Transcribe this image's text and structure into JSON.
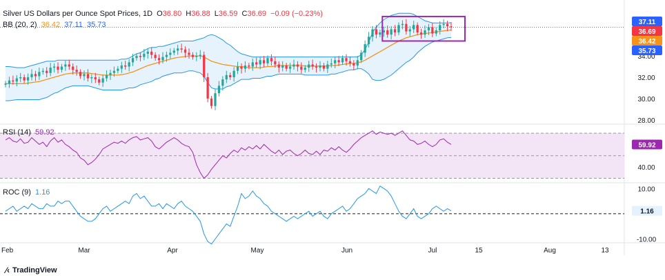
{
  "header": {
    "title": "Silver US Dollars per Ounce Spot Prices, 1D",
    "o_label": "O",
    "o_value": "36.80",
    "h_label": "H",
    "h_value": "36.88",
    "l_label": "L",
    "l_value": "36.59",
    "c_label": "C",
    "c_value": "36.69",
    "change": "−0.09 (−0.23%)",
    "bb_label": "BB (20, 2)",
    "bb_mid": "36.42",
    "bb_upper": "37.11",
    "bb_lower": "35.73"
  },
  "rsi": {
    "label": "RSI (14)",
    "value": "59.92"
  },
  "roc": {
    "label": "ROC (9)",
    "value": "1.16"
  },
  "brand": {
    "name": "TradingView"
  },
  "colors": {
    "up": "#26a69a",
    "down": "#f23645",
    "bb_mid": "#f7931a",
    "bb_band": "#2196f3",
    "bb_fill": "#e3f2fd",
    "rsi": "#9c27b0",
    "rsi_band": "#f3e5f5",
    "roc": "#2196f3",
    "highlight": "#9c27b0",
    "badge_last": "#f23645",
    "badge_upper": "#2962ff",
    "badge_mid": "#f7931a",
    "badge_lower": "#2962ff"
  },
  "chart_data": [
    {
      "type": "candlestick",
      "title": "Silver US Dollars per Ounce Spot Prices, 1D",
      "x_tick_labels": [
        "Feb",
        "Mar",
        "Apr",
        "May",
        "Jun",
        "Jul",
        "15",
        "Aug",
        "13"
      ],
      "y_tick_labels": [
        "34.00",
        "32.00",
        "30.00",
        "28.00"
      ],
      "ylim": [
        27.6,
        38.6
      ],
      "price_badges": [
        "37.11",
        "36.69",
        "36.42",
        "35.73"
      ],
      "close": [
        31.4,
        31.7,
        31.6,
        31.9,
        32.0,
        31.7,
        32.0,
        32.3,
        32.1,
        32.5,
        32.6,
        32.4,
        32.9,
        33.0,
        32.7,
        33.0,
        33.2,
        33.0,
        32.7,
        32.5,
        32.1,
        32.3,
        31.9,
        32.0,
        31.8,
        31.5,
        31.9,
        32.2,
        32.4,
        32.6,
        32.8,
        33.1,
        33.0,
        33.4,
        33.8,
        34.0,
        33.9,
        34.2,
        34.4,
        34.1,
        33.8,
        33.6,
        33.9,
        34.1,
        34.3,
        34.5,
        34.7,
        34.6,
        34.3,
        34.1,
        33.9,
        34.0,
        34.1,
        32.0,
        30.0,
        29.3,
        30.5,
        31.2,
        31.8,
        32.2,
        32.0,
        32.6,
        33.0,
        32.8,
        33.1,
        33.0,
        33.4,
        33.2,
        33.6,
        33.3,
        33.8,
        33.5,
        33.2,
        32.9,
        33.1,
        32.8,
        33.0,
        33.2,
        33.0,
        32.7,
        32.9,
        33.2,
        33.0,
        32.9,
        33.1,
        32.8,
        33.2,
        33.3,
        33.6,
        33.4,
        33.8,
        33.5,
        33.3,
        33.1,
        33.6,
        34.3,
        35.1,
        35.8,
        36.5,
        36.0,
        36.2,
        36.4,
        36.0,
        36.5,
        36.2,
        36.9,
        37.0,
        36.3,
        36.5,
        36.9,
        36.2,
        36.0,
        36.4,
        36.7,
        36.1,
        36.4,
        36.9,
        37.0,
        36.78,
        36.69
      ],
      "bb_upper": [
        33.0,
        33.0,
        32.95,
        32.9,
        32.9,
        32.9,
        33.0,
        33.1,
        33.2,
        33.3,
        33.4,
        33.5,
        33.5,
        33.5,
        33.6,
        33.6,
        33.6,
        33.6,
        33.6,
        33.6,
        33.6,
        33.6,
        33.6,
        33.6,
        33.6,
        33.6,
        33.6,
        33.6,
        33.6,
        33.6,
        33.6,
        33.7,
        33.7,
        33.8,
        34.0,
        34.2,
        34.3,
        34.5,
        34.7,
        34.8,
        34.8,
        34.9,
        34.9,
        35.0,
        35.1,
        35.2,
        35.3,
        35.4,
        35.4,
        35.4,
        35.4,
        35.5,
        35.6,
        35.7,
        35.9,
        36.0,
        35.9,
        35.7,
        35.5,
        35.2,
        35.0,
        34.7,
        34.4,
        34.2,
        34.1,
        34.0,
        33.9,
        33.9,
        33.9,
        33.9,
        33.9,
        33.9,
        33.9,
        33.9,
        33.9,
        33.9,
        33.9,
        33.9,
        33.9,
        33.9,
        33.9,
        33.9,
        33.9,
        33.9,
        33.9,
        33.9,
        33.9,
        33.9,
        33.9,
        33.9,
        33.9,
        33.9,
        33.9,
        33.9,
        33.9,
        34.1,
        34.6,
        35.3,
        36.2,
        36.7,
        37.1,
        37.4,
        37.6,
        37.8,
        37.9,
        38.0,
        38.0,
        38.0,
        38.0,
        37.9,
        37.7,
        37.5,
        37.3,
        37.2,
        37.1,
        37.1,
        37.1,
        37.1,
        37.1,
        37.11
      ],
      "bb_mid": [
        31.4,
        31.4,
        31.4,
        31.4,
        31.4,
        31.4,
        31.45,
        31.5,
        31.55,
        31.6,
        31.7,
        31.8,
        31.9,
        32.0,
        32.1,
        32.2,
        32.3,
        32.35,
        32.4,
        32.4,
        32.4,
        32.4,
        32.4,
        32.35,
        32.3,
        32.25,
        32.2,
        32.2,
        32.2,
        32.2,
        32.2,
        32.25,
        32.3,
        32.4,
        32.5,
        32.65,
        32.8,
        32.95,
        33.1,
        33.2,
        33.3,
        33.4,
        33.5,
        33.6,
        33.7,
        33.8,
        33.85,
        33.9,
        33.95,
        34.0,
        34.0,
        34.0,
        34.0,
        33.9,
        33.7,
        33.5,
        33.4,
        33.3,
        33.2,
        33.15,
        33.1,
        33.05,
        33.0,
        33.0,
        32.95,
        32.9,
        32.9,
        32.9,
        32.9,
        32.95,
        33.0,
        33.0,
        33.05,
        33.1,
        33.1,
        33.1,
        33.1,
        33.1,
        33.1,
        33.1,
        33.05,
        33.05,
        33.05,
        33.05,
        33.05,
        33.05,
        33.05,
        33.1,
        33.1,
        33.15,
        33.2,
        33.25,
        33.3,
        33.3,
        33.35,
        33.45,
        33.6,
        33.8,
        34.0,
        34.2,
        34.4,
        34.6,
        34.8,
        35.0,
        35.2,
        35.4,
        35.55,
        35.7,
        35.8,
        35.9,
        36.0,
        36.05,
        36.1,
        36.15,
        36.2,
        36.25,
        36.3,
        36.35,
        36.4,
        36.42
      ],
      "bb_lower": [
        29.8,
        29.8,
        29.85,
        29.9,
        29.9,
        29.9,
        29.9,
        29.9,
        29.9,
        29.9,
        30.0,
        30.1,
        30.3,
        30.5,
        30.6,
        30.8,
        31.0,
        31.1,
        31.2,
        31.2,
        31.2,
        31.2,
        31.2,
        31.1,
        31.0,
        30.9,
        30.8,
        30.8,
        30.8,
        30.8,
        30.8,
        30.8,
        30.9,
        31.0,
        31.0,
        31.1,
        31.3,
        31.4,
        31.5,
        31.6,
        31.8,
        31.9,
        32.1,
        32.2,
        32.3,
        32.4,
        32.4,
        32.4,
        32.5,
        32.6,
        32.6,
        32.5,
        32.4,
        32.1,
        31.5,
        31.0,
        30.9,
        30.9,
        30.9,
        31.1,
        31.2,
        31.4,
        31.6,
        31.8,
        31.8,
        31.8,
        31.9,
        31.9,
        31.9,
        32.0,
        32.1,
        32.1,
        32.2,
        32.3,
        32.3,
        32.3,
        32.3,
        32.3,
        32.3,
        32.3,
        32.2,
        32.2,
        32.2,
        32.2,
        32.2,
        32.2,
        32.2,
        32.3,
        32.3,
        32.4,
        32.5,
        32.6,
        32.7,
        32.7,
        32.8,
        32.8,
        32.6,
        32.3,
        31.8,
        31.7,
        31.7,
        31.8,
        32.0,
        32.2,
        32.5,
        32.8,
        33.1,
        33.4,
        33.6,
        33.9,
        34.3,
        34.6,
        34.9,
        35.1,
        35.3,
        35.4,
        35.5,
        35.6,
        35.7,
        35.73
      ]
    },
    {
      "type": "line",
      "title": "RSI (14)",
      "y_tick_labels": [
        "40.00"
      ],
      "ylim": [
        26,
        78
      ],
      "levels": [
        70,
        50,
        30
      ],
      "values": [
        64,
        66,
        63,
        62,
        65,
        61,
        62,
        66,
        63,
        60,
        62,
        58,
        63,
        66,
        62,
        64,
        60,
        58,
        55,
        53,
        48,
        46,
        42,
        44,
        47,
        51,
        56,
        58,
        60,
        62,
        61,
        63,
        61,
        64,
        66,
        67,
        64,
        65,
        66,
        63,
        58,
        56,
        59,
        62,
        64,
        66,
        64,
        61,
        59,
        58,
        53,
        42,
        35,
        30,
        33,
        38,
        42,
        46,
        50,
        48,
        52,
        55,
        53,
        57,
        55,
        58,
        56,
        59,
        56,
        60,
        57,
        54,
        52,
        55,
        51,
        54,
        55,
        52,
        50,
        52,
        55,
        52,
        51,
        54,
        51,
        55,
        54,
        57,
        55,
        58,
        55,
        53,
        56,
        60,
        63,
        66,
        68,
        70,
        72,
        69,
        71,
        70,
        69,
        70,
        68,
        70,
        72,
        68,
        64,
        63,
        60,
        61,
        63,
        60,
        58,
        60,
        64,
        65,
        62,
        60
      ],
      "current": "59.92"
    },
    {
      "type": "line",
      "title": "ROC (9)",
      "y_tick_labels": [
        "10.00",
        "-10.00"
      ],
      "ylim": [
        -11.5,
        12
      ],
      "levels": [
        0
      ],
      "values": [
        1,
        2,
        3,
        1,
        2,
        3,
        2,
        4,
        3,
        2,
        2,
        4,
        3,
        3,
        5,
        4,
        5,
        5,
        3,
        1,
        -1,
        -2,
        -3,
        -3,
        -2,
        0,
        2,
        3,
        1,
        2,
        3,
        4,
        5,
        4,
        7,
        8,
        6,
        7,
        5,
        3,
        3,
        4,
        2,
        4,
        3,
        2,
        4,
        5,
        3,
        2,
        1,
        -1,
        -3,
        -8,
        -11,
        -12,
        -10,
        -8,
        -6,
        -4,
        -5,
        -1,
        3,
        8,
        6,
        7,
        9,
        7,
        6,
        4,
        3,
        1,
        0,
        -1,
        -2,
        -3,
        -2,
        -1,
        -2,
        -1,
        0,
        1,
        -1,
        0,
        1,
        -1,
        -2,
        0,
        1,
        2,
        3,
        1,
        2,
        4,
        6,
        7,
        8,
        10,
        9,
        8,
        11,
        10,
        9,
        7,
        4,
        1,
        -1,
        -2,
        0,
        2,
        -1,
        -2,
        -1,
        0,
        2,
        3,
        2,
        1,
        2,
        1.16
      ],
      "current": "1.16"
    }
  ]
}
